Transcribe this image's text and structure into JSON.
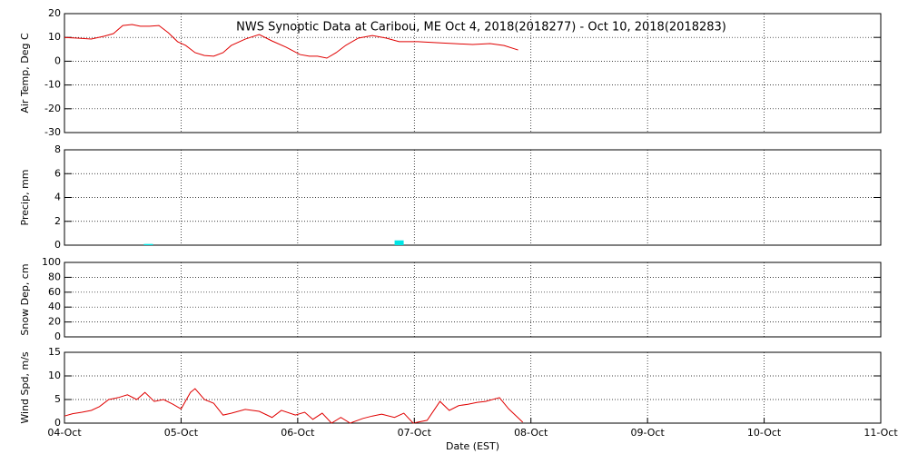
{
  "chart_data": [
    {
      "type": "line",
      "title": "NWS Synoptic Data at Caribou, ME   Oct  4, 2018(2018277) - Oct 10, 2018(2018283)",
      "ylabel": "Air Temp, Deg C",
      "x": [
        0,
        0.11,
        0.23,
        0.34,
        0.42,
        0.5,
        0.58,
        0.65,
        0.73,
        0.81,
        0.89,
        0.97,
        1.04,
        1.12,
        1.2,
        1.28,
        1.36,
        1.43,
        1.55,
        1.67,
        1.78,
        1.9,
        2.02,
        2.1,
        2.17,
        2.25,
        2.33,
        2.41,
        2.52,
        2.64,
        2.76,
        2.87,
        3.03,
        3.19,
        3.34,
        3.5,
        3.65,
        3.77,
        3.89
      ],
      "values": [
        10,
        9.7,
        9.3,
        10.5,
        11.6,
        15,
        15.4,
        14.7,
        14.7,
        15,
        12,
        8.2,
        6.6,
        3.6,
        2.4,
        2.1,
        3.6,
        6.6,
        9.3,
        11.2,
        8.5,
        5.9,
        2.8,
        2.1,
        2.1,
        1.3,
        3.6,
        6.6,
        9.7,
        10.8,
        9.7,
        8.2,
        8.2,
        7.8,
        7.4,
        7.0,
        7.4,
        6.6,
        4.7
      ],
      "color": "#e00000",
      "xlim": [
        0,
        7
      ],
      "ylim": [
        -30,
        20
      ],
      "yticks": [
        -30,
        -20,
        -10,
        0,
        10,
        20
      ],
      "grid": true
    },
    {
      "type": "bar",
      "ylabel": "Precip, mm",
      "x": [
        0.72,
        2.87
      ],
      "values": [
        0.1,
        0.4
      ],
      "color": "#00e5e5",
      "xlim": [
        0,
        7
      ],
      "ylim": [
        0,
        8
      ],
      "yticks": [
        0,
        2,
        4,
        6,
        8
      ],
      "grid": true
    },
    {
      "type": "line",
      "ylabel": "Snow Dep, cm",
      "x": [],
      "values": [],
      "color": "#e00000",
      "xlim": [
        0,
        7
      ],
      "ylim": [
        0,
        100
      ],
      "yticks": [
        0,
        20,
        40,
        60,
        80,
        100
      ],
      "grid": true
    },
    {
      "type": "line",
      "ylabel": "Wind Spd, m/s",
      "xlabel": "Date (EST)",
      "x": [
        0,
        0.07,
        0.15,
        0.23,
        0.3,
        0.38,
        0.46,
        0.54,
        0.62,
        0.69,
        0.77,
        0.85,
        0.93,
        1.0,
        1.08,
        1.12,
        1.2,
        1.28,
        1.36,
        1.43,
        1.55,
        1.67,
        1.78,
        1.86,
        1.98,
        2.06,
        2.13,
        2.21,
        2.29,
        2.37,
        2.45,
        2.56,
        2.64,
        2.72,
        2.83,
        2.91,
        2.99,
        3.11,
        3.22,
        3.3,
        3.38,
        3.46,
        3.54,
        3.61,
        3.73,
        3.81,
        3.93
      ],
      "values": [
        1.5,
        2,
        2.3,
        2.7,
        3.5,
        5,
        5.4,
        6,
        5,
        6.5,
        4.6,
        5,
        4,
        3,
        6.5,
        7.3,
        5,
        4.2,
        1.7,
        2.1,
        2.9,
        2.5,
        1.2,
        2.7,
        1.7,
        2.3,
        0.8,
        2.1,
        0,
        1.2,
        0,
        1,
        1.5,
        1.9,
        1.2,
        2.1,
        0,
        0.6,
        4.6,
        2.7,
        3.7,
        4,
        4.4,
        4.6,
        5.4,
        3,
        0.2
      ],
      "color": "#e00000",
      "xlim": [
        0,
        7
      ],
      "xticks": [
        {
          "value": 0,
          "label": "04-Oct"
        },
        {
          "value": 1,
          "label": "05-Oct"
        },
        {
          "value": 2,
          "label": "06-Oct"
        },
        {
          "value": 3,
          "label": "07-Oct"
        },
        {
          "value": 4,
          "label": "08-Oct"
        },
        {
          "value": 5,
          "label": "09-Oct"
        },
        {
          "value": 6,
          "label": "10-Oct"
        },
        {
          "value": 7,
          "label": "11-Oct"
        }
      ],
      "ylim": [
        0,
        15
      ],
      "yticks": [
        0,
        5,
        10,
        15
      ],
      "grid": true
    }
  ]
}
